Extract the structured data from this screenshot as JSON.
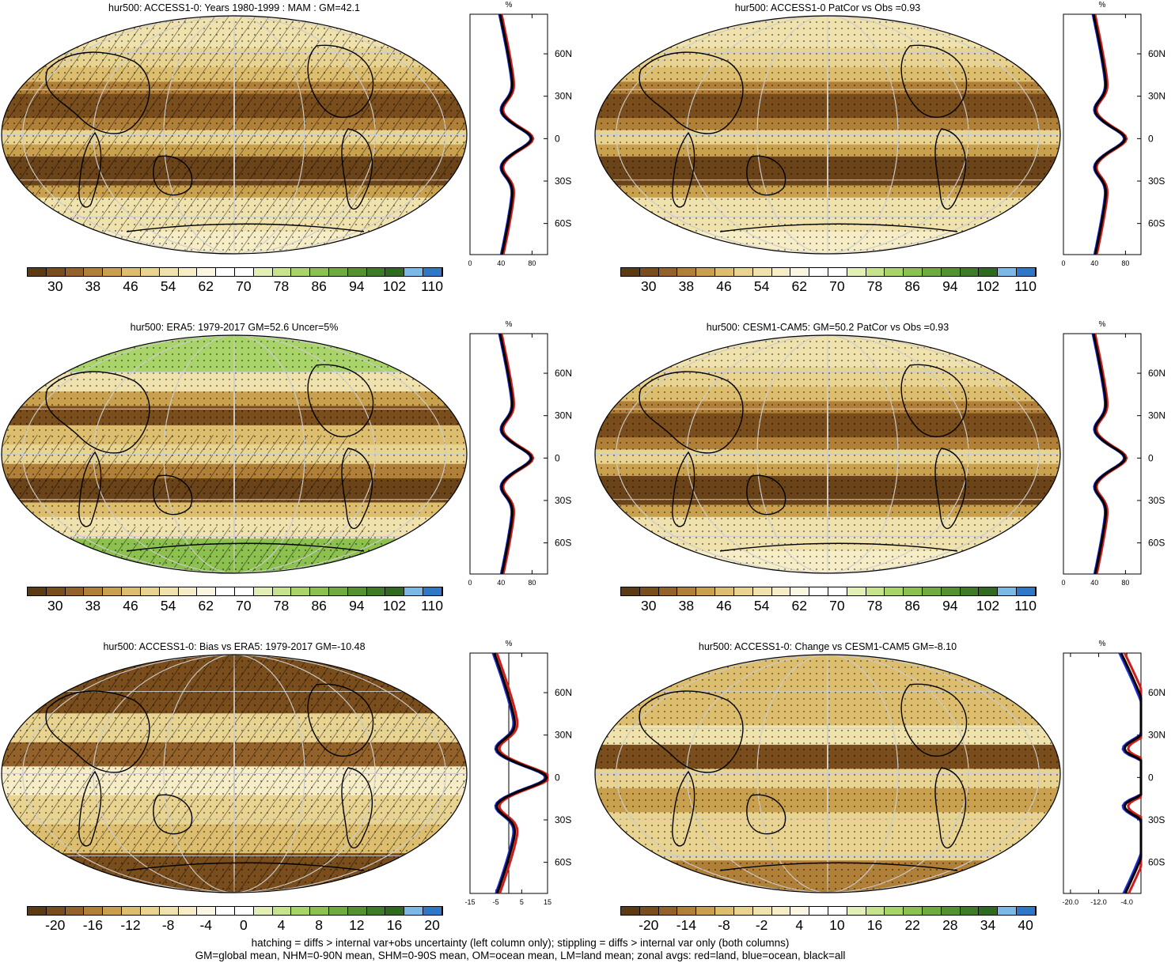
{
  "panels": [
    {
      "title": "hur500: ACCESS1-0: Years 1980-1999 : MAM : GM=42.1",
      "palette": "abs",
      "hatched": "full",
      "cb_labels": [
        "30",
        "38",
        "46",
        "54",
        "62",
        "70",
        "78",
        "86",
        "94",
        "102",
        "110"
      ],
      "zonal": {
        "unit": "%",
        "xticks": [
          "0",
          "40",
          "80"
        ],
        "xmin": 0,
        "xmax": 100,
        "zero_line": false
      }
    },
    {
      "title": "hur500: ACCESS1-0 PatCor vs Obs =0.93",
      "palette": "abs",
      "hatched": "none",
      "cb_labels": [
        "30",
        "38",
        "46",
        "54",
        "62",
        "70",
        "78",
        "86",
        "94",
        "102",
        "110"
      ],
      "zonal": {
        "unit": "%",
        "xticks": [
          "0",
          "40",
          "80"
        ],
        "xmin": 0,
        "xmax": 100,
        "zero_line": false
      }
    },
    {
      "title": "hur500: ERA5: 1979-2017 GM=52.6 Uncer=5%",
      "palette": "abs",
      "hatched": "partial",
      "cb_labels": [
        "30",
        "38",
        "46",
        "54",
        "62",
        "70",
        "78",
        "86",
        "94",
        "102",
        "110"
      ],
      "zonal": {
        "unit": "%",
        "xticks": [
          "0",
          "40",
          "80"
        ],
        "xmin": 0,
        "xmax": 100,
        "zero_line": false
      }
    },
    {
      "title": "hur500: CESM1-CAM5: GM=50.2 PatCor vs Obs =0.93",
      "palette": "abs",
      "hatched": "none",
      "cb_labels": [
        "30",
        "38",
        "46",
        "54",
        "62",
        "70",
        "78",
        "86",
        "94",
        "102",
        "110"
      ],
      "zonal": {
        "unit": "%",
        "xticks": [
          "0",
          "40",
          "80"
        ],
        "xmin": 0,
        "xmax": 100,
        "zero_line": false
      }
    },
    {
      "title": "hur500: ACCESS1-0: Bias vs ERA5: 1979-2017 GM=-10.48",
      "palette": "diff",
      "hatched": "full",
      "cb_labels": [
        "-20",
        "-16",
        "-12",
        "-8",
        "-4",
        "0",
        "4",
        "8",
        "12",
        "16",
        "20"
      ],
      "zonal": {
        "unit": "%",
        "xticks": [
          "-15",
          "-5",
          "5",
          "15"
        ],
        "xmin": -15,
        "xmax": 15,
        "zero_line": true
      }
    },
    {
      "title": "hur500: ACCESS1-0: Change vs CESM1-CAM5 GM=-8.10",
      "palette": "diff",
      "hatched": "none",
      "cb_labels": [
        "-20",
        "-14",
        "-8",
        "-2",
        "4",
        "10",
        "16",
        "22",
        "28",
        "34",
        "40"
      ],
      "zonal": {
        "unit": "%",
        "xticks": [
          "-20.0",
          "-12.0",
          "-4.0"
        ],
        "xmin": -22,
        "xmax": 0,
        "zero_line": false
      }
    }
  ],
  "lat_labels": [
    "60N",
    "30N",
    "0",
    "30S",
    "60S"
  ],
  "colors": {
    "abs": [
      "#5c3a12",
      "#7a4d1c",
      "#93622a",
      "#b07f38",
      "#c9a14e",
      "#dcbe6e",
      "#e8d391",
      "#f0e2ad",
      "#f6edc6",
      "#fbf6e2",
      "#ffffff",
      "#ffffff",
      "#e2f0b6",
      "#c7e38c",
      "#a9d46a",
      "#8cc04f",
      "#6fab3e",
      "#54922f",
      "#3d7b26",
      "#2f6b1f",
      "#7ab8e6",
      "#2f78c7"
    ],
    "diff": [
      "#5c3a12",
      "#7a4d1c",
      "#93622a",
      "#b07f38",
      "#c9a14e",
      "#dcbe6e",
      "#e8d391",
      "#f0e2ad",
      "#f6edc6",
      "#fbf6e2",
      "#ffffff",
      "#ffffff",
      "#e2f0b6",
      "#c7e38c",
      "#a9d46a",
      "#8cc04f",
      "#6fab3e",
      "#54922f",
      "#3d7b26",
      "#2f6b1f",
      "#7ab8e6",
      "#2f78c7"
    ],
    "land_line": "#d11a1a",
    "ocean_line": "#1f2fd6",
    "all_line": "#000000"
  },
  "footer": {
    "line1": "hatching = diffs > internal var+obs uncertainty (left column only); stippling = diffs > internal var only (both columns)",
    "line2": "GM=global mean, NHM=0-90N mean, SHM=0-90S mean, OM=ocean mean, LM=land mean; zonal avgs: red=land, blue=ocean, black=all"
  }
}
